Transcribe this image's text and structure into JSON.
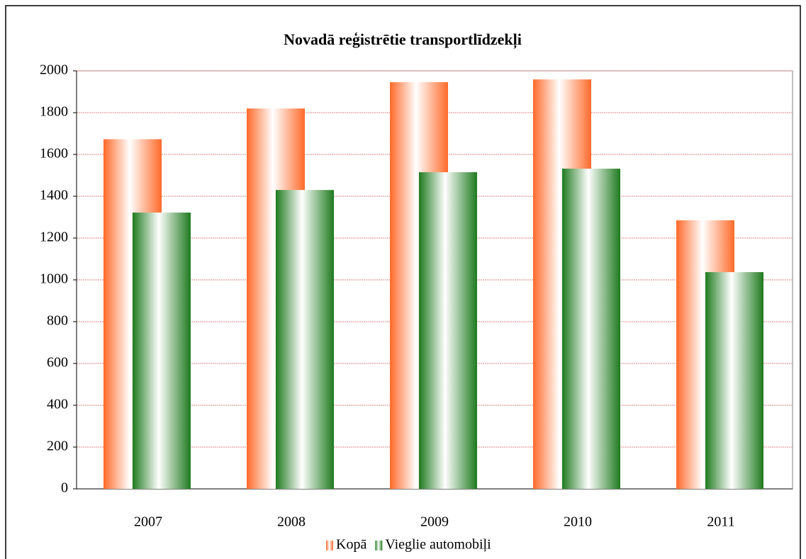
{
  "chart_data": {
    "type": "bar",
    "title": "Novadā reģistrētie transportlīdzekļi",
    "categories": [
      "2007",
      "2008",
      "2009",
      "2010",
      "2011"
    ],
    "series": [
      {
        "name": "Kopā",
        "color": "#ff6a2a",
        "values": [
          1673,
          1820,
          1946,
          1959,
          1285
        ]
      },
      {
        "name": "Vieglie automobiļi",
        "color": "#1e7a1e",
        "values": [
          1322,
          1430,
          1515,
          1532,
          1037
        ]
      }
    ],
    "ylim": [
      0,
      2000
    ],
    "yticks": [
      0,
      200,
      400,
      600,
      800,
      1000,
      1200,
      1400,
      1600,
      1800,
      2000
    ],
    "grid": true,
    "legend": "bottom"
  }
}
